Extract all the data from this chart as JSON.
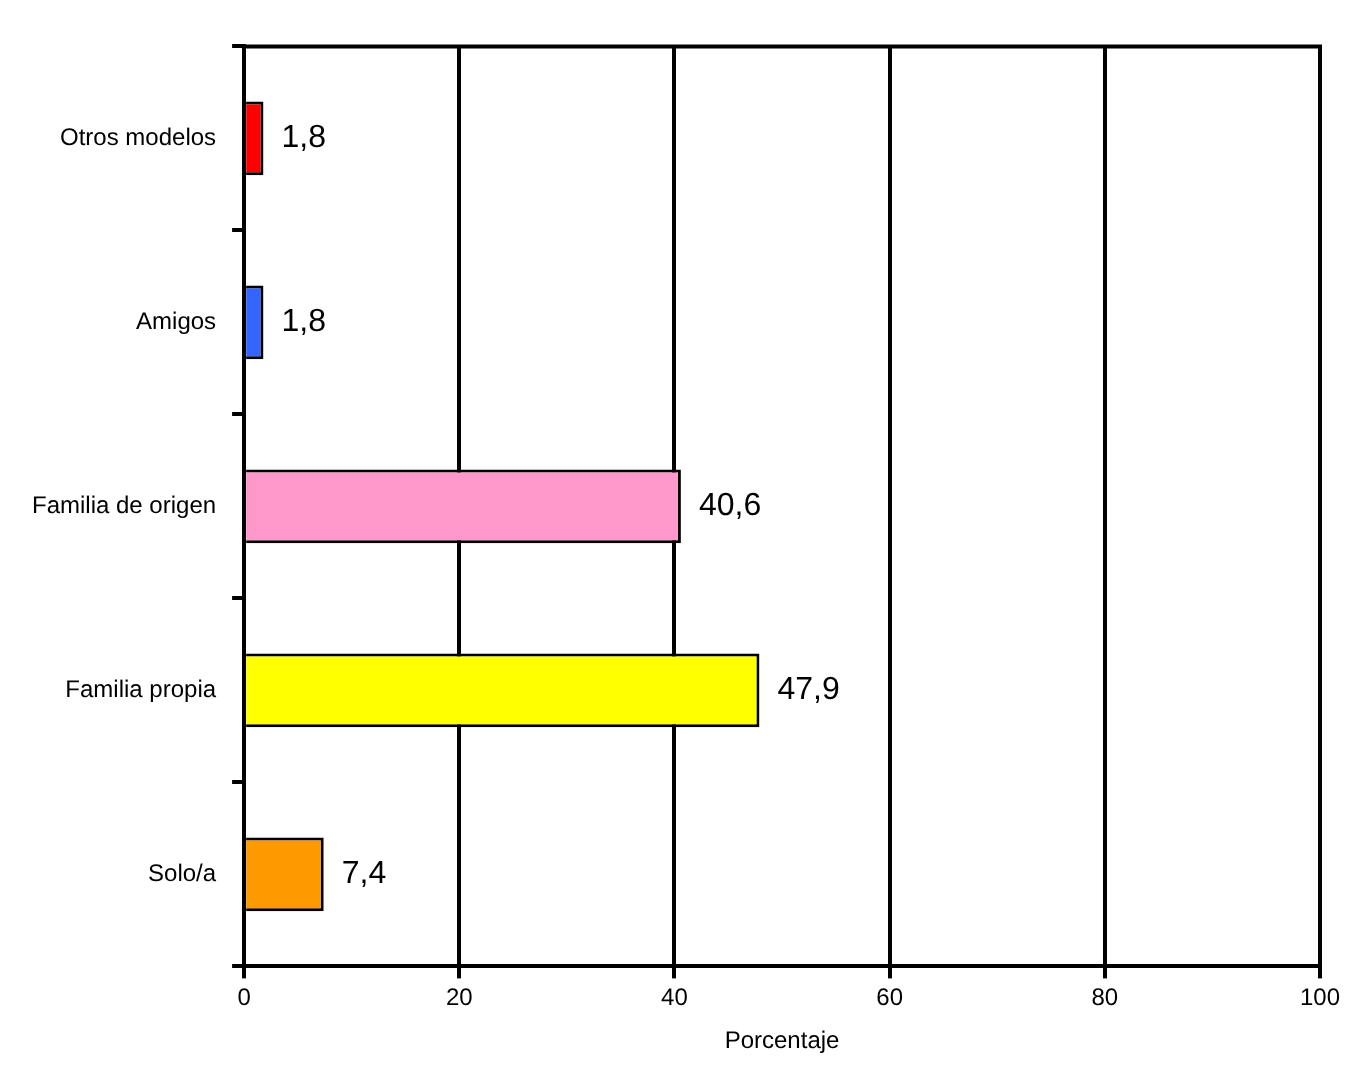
{
  "chart_data": {
    "type": "bar",
    "orientation": "horizontal",
    "xlabel": "Porcentaje",
    "categories": [
      "Otros modelos",
      "Amigos",
      "Familia de origen",
      "Familia propia",
      "Solo/a"
    ],
    "values": [
      1.8,
      1.8,
      40.6,
      47.9,
      7.4
    ],
    "value_labels": [
      "1,8",
      "1,8",
      "40,6",
      "47,9",
      "7,4"
    ],
    "colors": [
      "#ff0000",
      "#3366ff",
      "#ff99cc",
      "#ffff00",
      "#ff9900"
    ],
    "xlim": [
      0,
      100
    ],
    "xticks": [
      0,
      20,
      40,
      60,
      80,
      100
    ],
    "grid": "x",
    "legend": false
  }
}
